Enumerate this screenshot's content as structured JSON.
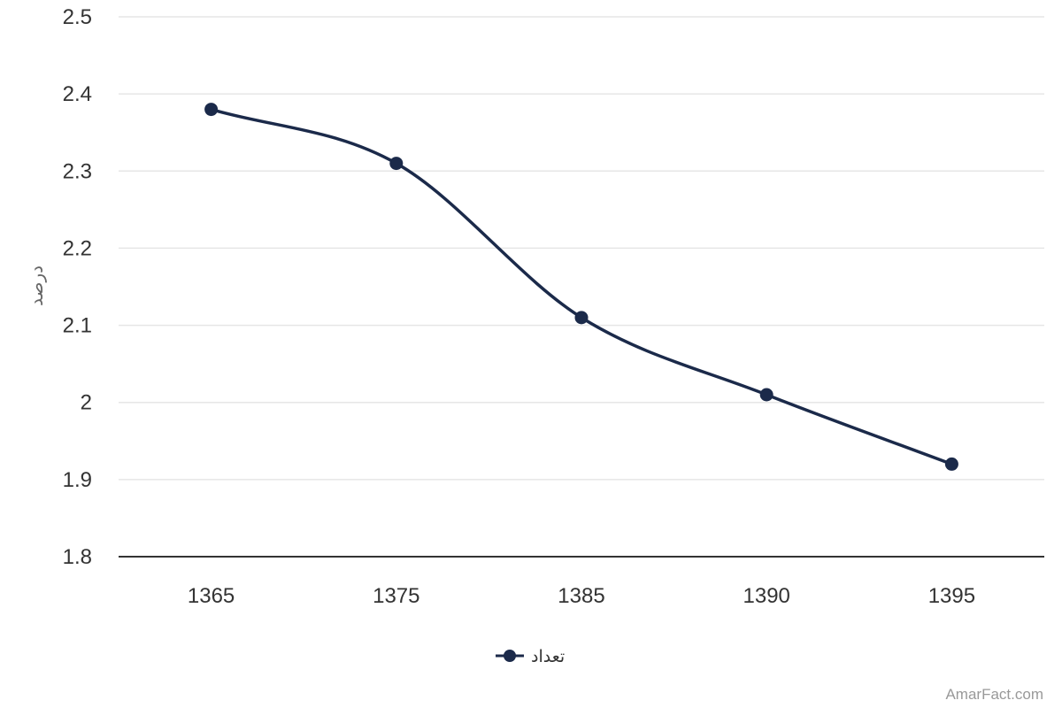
{
  "chart_data": {
    "type": "line",
    "title": "",
    "xlabel": "",
    "ylabel": "درصد",
    "categories": [
      "1365",
      "1375",
      "1385",
      "1390",
      "1395"
    ],
    "series": [
      {
        "name": "تعداد",
        "values": [
          2.38,
          2.31,
          2.11,
          2.01,
          1.92
        ],
        "color": "#1b2a4a"
      }
    ],
    "ylim": [
      1.8,
      2.5
    ],
    "yticks": [
      "1.8",
      "1.9",
      "2",
      "2.1",
      "2.2",
      "2.3",
      "2.4",
      "2.5"
    ],
    "smooth": true,
    "grid": true,
    "legend": "bottom-center"
  },
  "credits": "AmarFact.com",
  "colors": {
    "series": "#1b2a4a",
    "grid": "#e6e6e6",
    "axis": "#333333"
  }
}
